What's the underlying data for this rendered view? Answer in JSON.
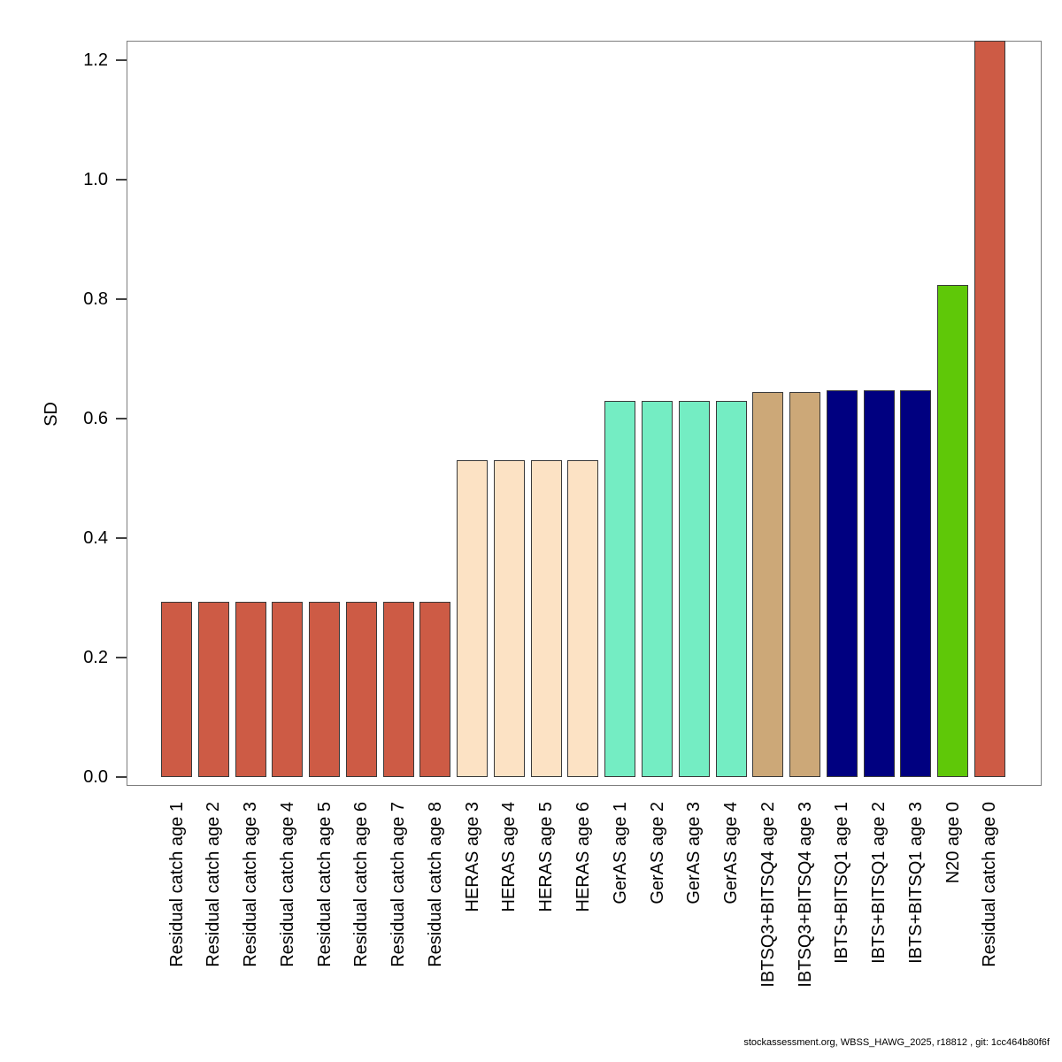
{
  "chart_data": {
    "type": "bar",
    "title": "",
    "xlabel": "",
    "ylabel": "SD",
    "ylim": [
      0,
      1.232
    ],
    "yticks": [
      0.0,
      0.2,
      0.4,
      0.6,
      0.8,
      1.0,
      1.2
    ],
    "ytick_labels": [
      "0.0",
      "0.2",
      "0.4",
      "0.6",
      "0.8",
      "1.0",
      "1.2"
    ],
    "grid": false,
    "legend": "none",
    "bars": [
      {
        "label": "Residual catch age 1",
        "value": 0.293,
        "color": "#CD5B45"
      },
      {
        "label": "Residual catch age 2",
        "value": 0.293,
        "color": "#CD5B45"
      },
      {
        "label": "Residual catch age 3",
        "value": 0.293,
        "color": "#CD5B45"
      },
      {
        "label": "Residual catch age 4",
        "value": 0.293,
        "color": "#CD5B45"
      },
      {
        "label": "Residual catch age 5",
        "value": 0.293,
        "color": "#CD5B45"
      },
      {
        "label": "Residual catch age 6",
        "value": 0.293,
        "color": "#CD5B45"
      },
      {
        "label": "Residual catch age 7",
        "value": 0.293,
        "color": "#CD5B45"
      },
      {
        "label": "Residual catch age 8",
        "value": 0.293,
        "color": "#CD5B45"
      },
      {
        "label": "HERAS age 3",
        "value": 0.53,
        "color": "#FCE2C4"
      },
      {
        "label": "HERAS age 4",
        "value": 0.53,
        "color": "#FCE2C4"
      },
      {
        "label": "HERAS age 5",
        "value": 0.53,
        "color": "#FCE2C4"
      },
      {
        "label": "HERAS age 6",
        "value": 0.53,
        "color": "#FCE2C4"
      },
      {
        "label": "GerAS age 1",
        "value": 0.63,
        "color": "#74EDC3"
      },
      {
        "label": "GerAS age 2",
        "value": 0.63,
        "color": "#74EDC3"
      },
      {
        "label": "GerAS age 3",
        "value": 0.63,
        "color": "#74EDC3"
      },
      {
        "label": "GerAS age 4",
        "value": 0.63,
        "color": "#74EDC3"
      },
      {
        "label": "IBTSQ3+BITSQ4 age 2",
        "value": 0.644,
        "color": "#CCA878"
      },
      {
        "label": "IBTSQ3+BITSQ4 age 3",
        "value": 0.644,
        "color": "#CCA878"
      },
      {
        "label": "IBTS+BITSQ1 age 1",
        "value": 0.647,
        "color": "#000080"
      },
      {
        "label": "IBTS+BITSQ1 age 2",
        "value": 0.647,
        "color": "#000080"
      },
      {
        "label": "IBTS+BITSQ1 age 3",
        "value": 0.647,
        "color": "#000080"
      },
      {
        "label": "N20 age 0",
        "value": 0.824,
        "color": "#5FC808"
      },
      {
        "label": "Residual catch age 0",
        "value": 1.232,
        "color": "#CD5B45"
      }
    ]
  },
  "footer": {
    "credit": "stockassessment.org, WBSS_HAWG_2025, r18812 , git: 1cc464b80f6f"
  }
}
